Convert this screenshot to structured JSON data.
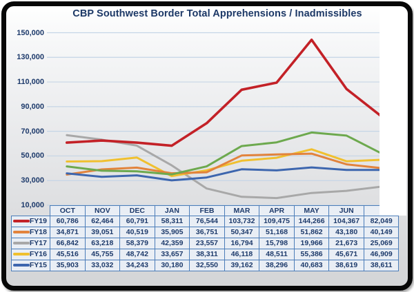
{
  "title": "CBP Southwest Border Total Apprehensions / Inadmissibles",
  "colors": {
    "red": "#c32127",
    "orange": "#e2833c",
    "gray": "#a8a8a8",
    "yellow": "#f0c02f",
    "blue": "#3d66ae",
    "green": "#6da94e",
    "navy_text": "#1d3a6b",
    "table_border": "#4a7cb8",
    "table_cell_bg": "#e9eef5",
    "gridline": "#c5d5e6"
  },
  "y_axis": {
    "labels": [
      "150,000",
      "130,000",
      "110,000",
      "90,000",
      "70,000",
      "50,000",
      "30,000",
      "10,000"
    ]
  },
  "table": {
    "columns": [
      "OCT",
      "NOV",
      "DEC",
      "JAN",
      "FEB",
      "MAR",
      "APR",
      "MAY",
      "JUN",
      ""
    ],
    "rows": [
      {
        "label": "FY19",
        "color": "#c32127",
        "values": [
          "60,786",
          "62,464",
          "60,791",
          "58,311",
          "76,544",
          "103,732",
          "109,475",
          "144,266",
          "104,367",
          "82,049"
        ]
      },
      {
        "label": "FY18",
        "color": "#e2833c",
        "values": [
          "34,871",
          "39,051",
          "40,519",
          "35,905",
          "36,751",
          "50,347",
          "51,168",
          "51,862",
          "43,180",
          "40,149"
        ]
      },
      {
        "label": "FY17",
        "color": "#a8a8a8",
        "values": [
          "66,842",
          "63,218",
          "58,379",
          "42,359",
          "23,557",
          "16,794",
          "15,798",
          "19,966",
          "21,673",
          "25,069"
        ]
      },
      {
        "label": "FY16",
        "color": "#f0c02f",
        "values": [
          "45,516",
          "45,755",
          "48,742",
          "33,657",
          "38,311",
          "46,118",
          "48,511",
          "55,386",
          "45,671",
          "46,909"
        ]
      },
      {
        "label": "FY15",
        "color": "#3d66ae",
        "values": [
          "35,903",
          "33,032",
          "34,243",
          "30,180",
          "32,550",
          "39,162",
          "38,296",
          "40,683",
          "38,619",
          "38,611"
        ]
      }
    ]
  },
  "chart_data": {
    "type": "line",
    "title": "CBP Southwest Border Total Apprehensions / Inadmissibles",
    "x_categories": [
      "OCT",
      "NOV",
      "DEC",
      "JAN",
      "FEB",
      "MAR",
      "APR",
      "MAY",
      "JUN",
      ""
    ],
    "ylim": [
      10000,
      150000
    ],
    "y_ticks": [
      150000,
      130000,
      110000,
      90000,
      70000,
      50000,
      30000,
      10000
    ],
    "grid": "horizontal",
    "legend_position": "table-left-column",
    "series": [
      {
        "name": "FY19",
        "color": "#c32127",
        "values": [
          60786,
          62464,
          60791,
          58311,
          76544,
          103732,
          109475,
          144266,
          104367,
          82049
        ]
      },
      {
        "name": "FY18",
        "color": "#e2833c",
        "values": [
          34871,
          39051,
          40519,
          35905,
          36751,
          50347,
          51168,
          51862,
          43180,
          40149
        ]
      },
      {
        "name": "FY17",
        "color": "#a8a8a8",
        "values": [
          66842,
          63218,
          58379,
          42359,
          23557,
          16794,
          15798,
          19966,
          21673,
          25069
        ]
      },
      {
        "name": "FY16",
        "color": "#f0c02f",
        "values": [
          45516,
          45755,
          48742,
          33657,
          38311,
          46118,
          48511,
          55386,
          45671,
          46909
        ]
      },
      {
        "name": "FY15",
        "color": "#3d66ae",
        "values": [
          35903,
          33032,
          34243,
          30180,
          32550,
          39162,
          38296,
          40683,
          38619,
          38611
        ]
      },
      {
        "name": "unlabeled-green",
        "color": "#6da94e",
        "estimated": true,
        "values": [
          41500,
          38000,
          37500,
          35000,
          41500,
          58000,
          61000,
          69000,
          66500,
          52000
        ]
      }
    ]
  }
}
